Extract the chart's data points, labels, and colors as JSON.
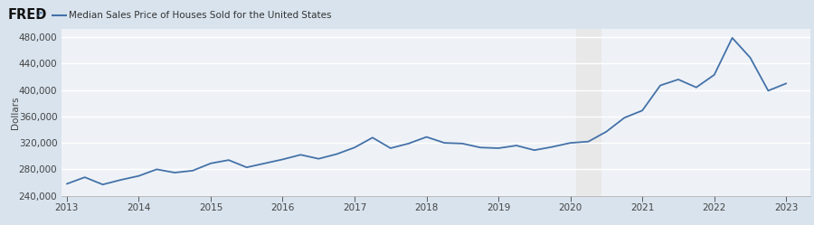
{
  "title": "Median Sales Price of Houses Sold for the United States",
  "ylabel": "Dollars",
  "line_color": "#4472a8",
  "header_bg": "#d8e3ed",
  "plot_bg": "#eef2f7",
  "grid_color": "#ffffff",
  "recession_color": "#e8e8e8",
  "recession_start": 2020.08,
  "recession_end": 2020.42,
  "ylim": [
    240000,
    492000
  ],
  "yticks": [
    240000,
    280000,
    320000,
    360000,
    400000,
    440000,
    480000
  ],
  "xlim_start": 2012.92,
  "xlim_end": 2023.33,
  "xticks": [
    2013,
    2014,
    2015,
    2016,
    2017,
    2018,
    2019,
    2020,
    2021,
    2022,
    2023
  ],
  "data": {
    "dates": [
      2013.0,
      2013.25,
      2013.5,
      2013.75,
      2014.0,
      2014.25,
      2014.5,
      2014.75,
      2015.0,
      2015.25,
      2015.5,
      2015.75,
      2016.0,
      2016.25,
      2016.5,
      2016.75,
      2017.0,
      2017.25,
      2017.5,
      2017.75,
      2018.0,
      2018.25,
      2018.5,
      2018.75,
      2019.0,
      2019.25,
      2019.5,
      2019.75,
      2020.0,
      2020.25,
      2020.5,
      2020.75,
      2021.0,
      2021.25,
      2021.5,
      2021.75,
      2022.0,
      2022.25,
      2022.5,
      2022.75,
      2023.0
    ],
    "values": [
      258000,
      268000,
      257000,
      264000,
      270000,
      280000,
      275000,
      278000,
      289000,
      294000,
      283000,
      289000,
      295000,
      302000,
      296000,
      303000,
      313000,
      328000,
      312000,
      319000,
      329000,
      320000,
      319000,
      313000,
      312000,
      316000,
      309000,
      314000,
      320000,
      322000,
      337000,
      358000,
      369000,
      407000,
      416000,
      404000,
      423000,
      479000,
      449000,
      399000,
      410000
    ]
  }
}
